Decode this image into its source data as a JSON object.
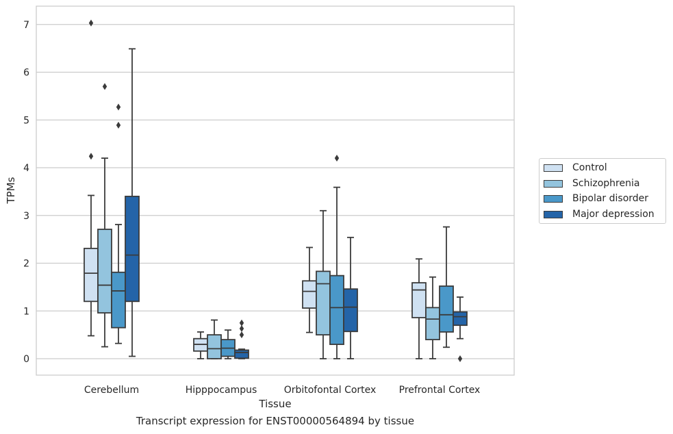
{
  "chart_data": {
    "type": "box",
    "xlabel": "Tissue",
    "ylabel": "TPMs",
    "caption": "Transcript expression for ENST00000564894 by tissue",
    "ylim": [
      -0.33,
      7.38
    ],
    "yticks": [
      "0",
      "1",
      "2",
      "3",
      "4",
      "5",
      "6",
      "7"
    ],
    "grid": true,
    "legend_position": "right",
    "categories": [
      "Cerebellum",
      "Hipppocampus",
      "Orbitofontal Cortex",
      "Prefrontal Cortex"
    ],
    "series": [
      {
        "name": "Control",
        "color": "#cfe1f2",
        "boxes": [
          {
            "whislo": 0.48,
            "q1": 1.2,
            "med": 1.79,
            "q3": 2.31,
            "whishi": 3.42,
            "fliers": [
              4.24,
              7.03
            ]
          },
          {
            "whislo": 0.0,
            "q1": 0.16,
            "med": 0.3,
            "q3": 0.42,
            "whishi": 0.56,
            "fliers": []
          },
          {
            "whislo": 0.55,
            "q1": 1.06,
            "med": 1.41,
            "q3": 1.63,
            "whishi": 2.33,
            "fliers": []
          },
          {
            "whislo": 0.0,
            "q1": 0.86,
            "med": 1.44,
            "q3": 1.59,
            "whishi": 2.09,
            "fliers": []
          }
        ]
      },
      {
        "name": "Schizophrenia",
        "color": "#93c4de",
        "boxes": [
          {
            "whislo": 0.25,
            "q1": 0.96,
            "med": 1.54,
            "q3": 2.71,
            "whishi": 4.2,
            "fliers": [
              5.7
            ]
          },
          {
            "whislo": 0.0,
            "q1": 0.0,
            "med": 0.21,
            "q3": 0.5,
            "whishi": 0.81,
            "fliers": []
          },
          {
            "whislo": 0.0,
            "q1": 0.5,
            "med": 1.57,
            "q3": 1.83,
            "whishi": 3.1,
            "fliers": []
          },
          {
            "whislo": 0.0,
            "q1": 0.4,
            "med": 0.83,
            "q3": 1.07,
            "whishi": 1.71,
            "fliers": []
          }
        ]
      },
      {
        "name": "Bipolar disorder",
        "color": "#4a98c9",
        "boxes": [
          {
            "whislo": 0.32,
            "q1": 0.65,
            "med": 1.42,
            "q3": 1.81,
            "whishi": 2.81,
            "fliers": [
              4.89,
              5.27
            ]
          },
          {
            "whislo": 0.0,
            "q1": 0.05,
            "med": 0.22,
            "q3": 0.4,
            "whishi": 0.6,
            "fliers": []
          },
          {
            "whislo": 0.0,
            "q1": 0.3,
            "med": 1.07,
            "q3": 1.74,
            "whishi": 3.59,
            "fliers": [
              4.2
            ]
          },
          {
            "whislo": 0.24,
            "q1": 0.56,
            "med": 0.92,
            "q3": 1.52,
            "whishi": 2.76,
            "fliers": []
          }
        ]
      },
      {
        "name": "Major depression",
        "color": "#2464a8",
        "boxes": [
          {
            "whislo": 0.05,
            "q1": 1.2,
            "med": 2.17,
            "q3": 3.4,
            "whishi": 6.49,
            "fliers": []
          },
          {
            "whislo": 0.0,
            "q1": 0.01,
            "med": 0.13,
            "q3": 0.18,
            "whishi": 0.2,
            "fliers": [
              0.5,
              0.63,
              0.75
            ]
          },
          {
            "whislo": 0.0,
            "q1": 0.57,
            "med": 1.08,
            "q3": 1.46,
            "whishi": 2.54,
            "fliers": []
          },
          {
            "whislo": 0.42,
            "q1": 0.7,
            "med": 0.88,
            "q3": 0.98,
            "whishi": 1.29,
            "fliers": [
              0.0
            ]
          }
        ]
      }
    ]
  }
}
